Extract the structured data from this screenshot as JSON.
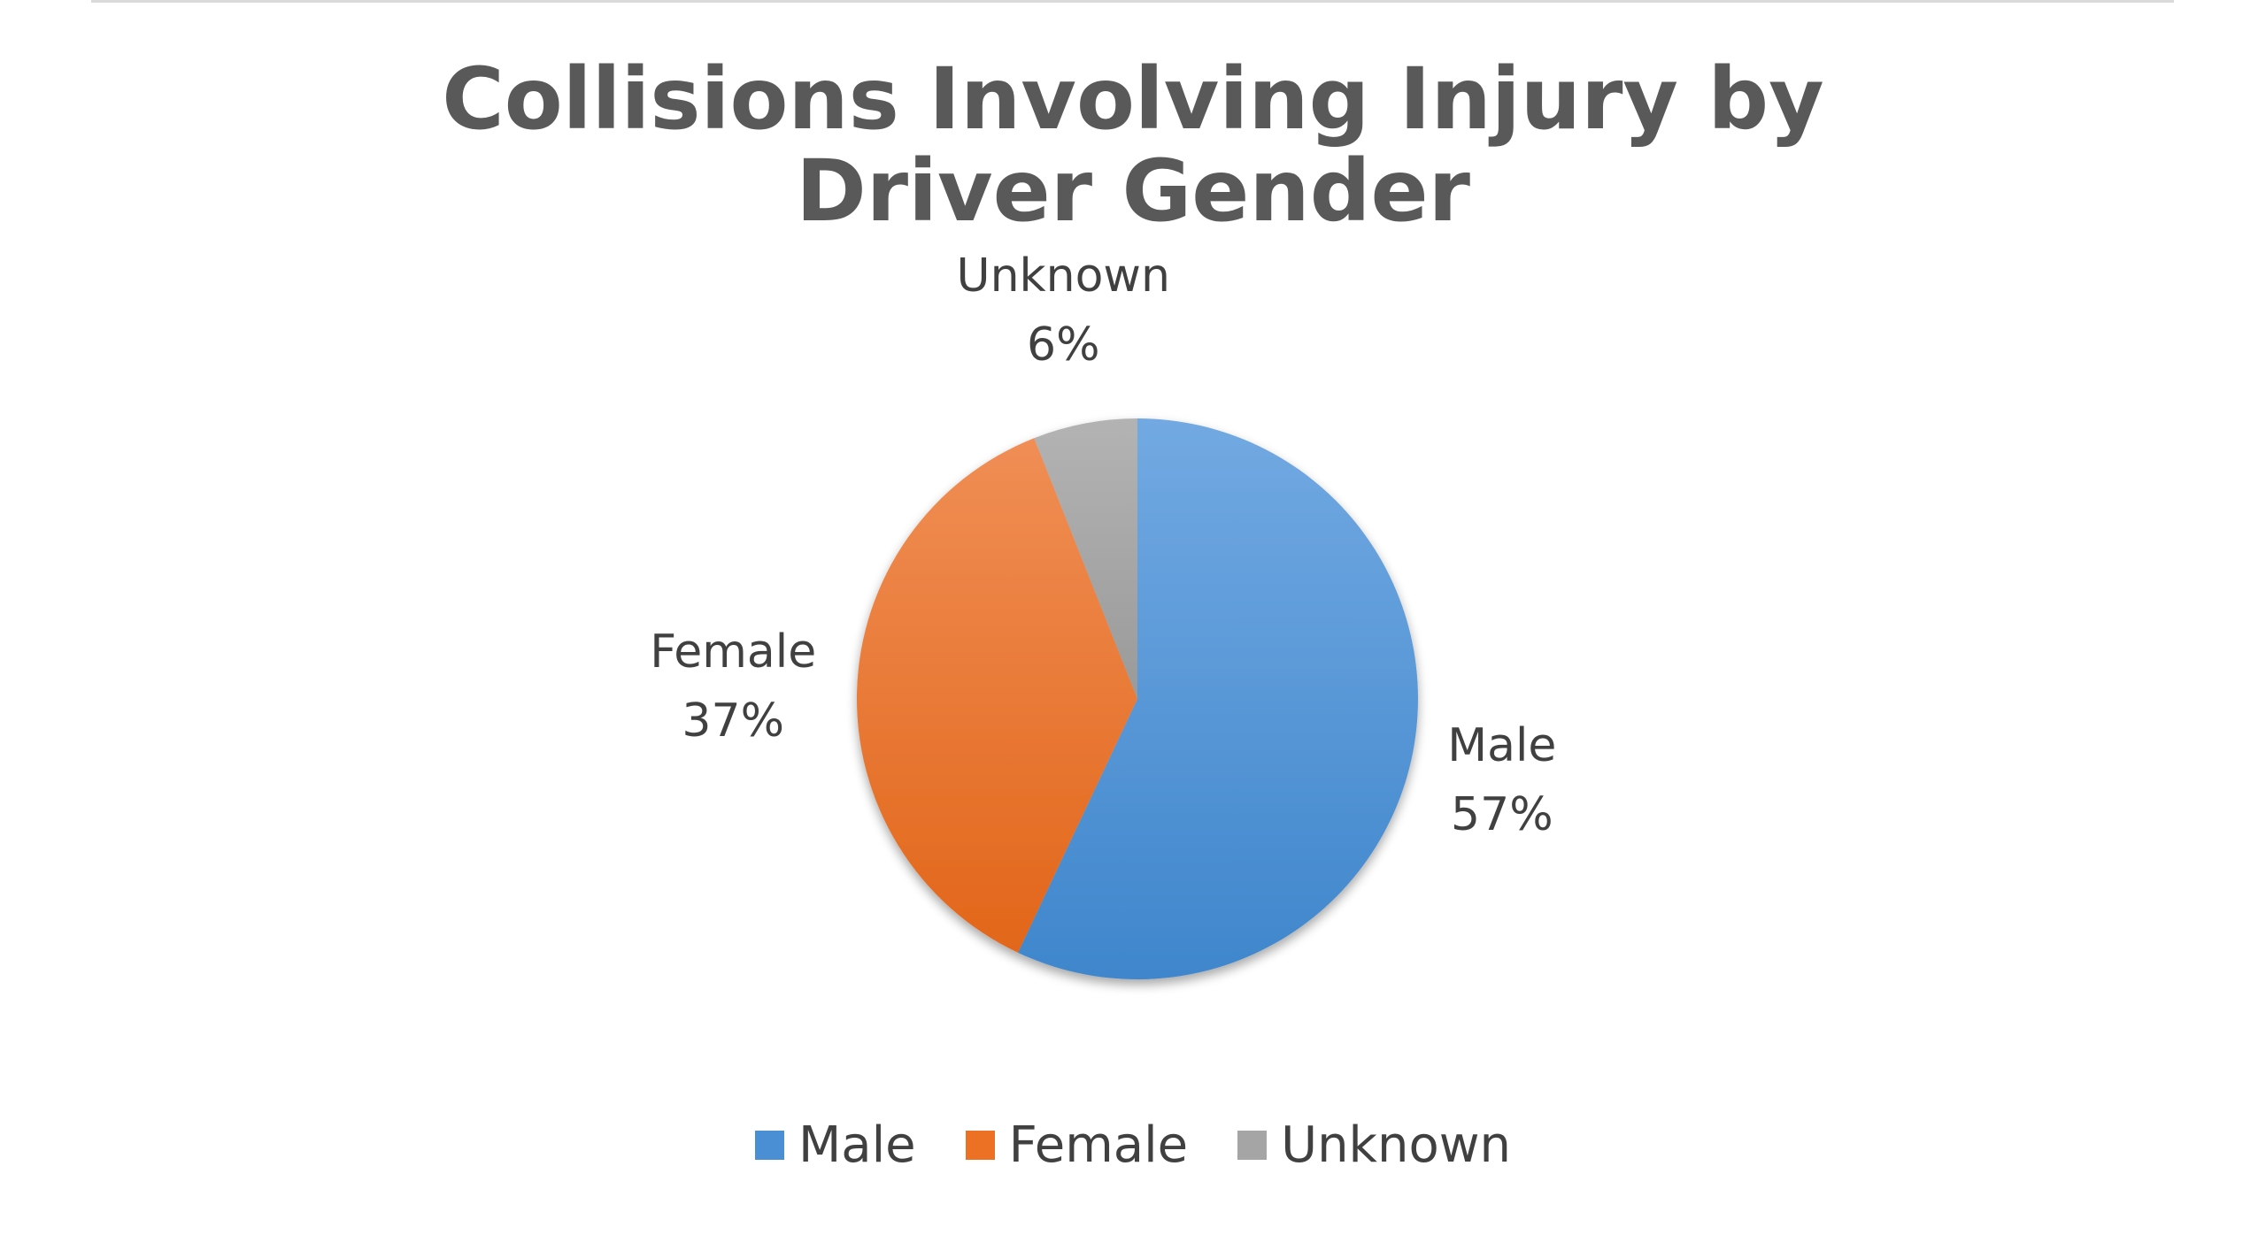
{
  "chart_data": {
    "type": "pie",
    "title": "Collisions Involving Injury by Driver Gender",
    "categories": [
      "Male",
      "Female",
      "Unknown"
    ],
    "values": [
      57,
      37,
      6
    ],
    "labels": [
      {
        "name": "Male",
        "percent": "57%"
      },
      {
        "name": "Female",
        "percent": "37%"
      },
      {
        "name": "Unknown",
        "percent": "6%"
      }
    ],
    "colors": [
      "#4a8fd4",
      "#ed7125",
      "#a5a5a5"
    ],
    "legend_position": "bottom"
  }
}
